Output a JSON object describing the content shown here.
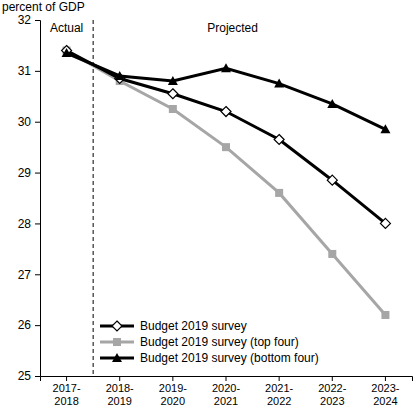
{
  "chart_data": {
    "type": "line",
    "y_label": "percent of GDP",
    "annotations": [
      "Actual",
      "Projected"
    ],
    "categories": [
      "2017-2018",
      "2018-2019",
      "2019-2020",
      "2020-2021",
      "2021-2022",
      "2022-2023",
      "2023-2024"
    ],
    "series": [
      {
        "name": "Budget 2019 survey",
        "color": "#000000",
        "marker": "diamond",
        "values": [
          31.4,
          30.85,
          30.55,
          30.2,
          29.65,
          28.85,
          28.0
        ]
      },
      {
        "name": "Budget 2019 survey (top four)",
        "color": "#a6a6a6",
        "marker": "square",
        "values": [
          31.4,
          30.8,
          30.25,
          29.5,
          28.6,
          27.4,
          26.2
        ]
      },
      {
        "name": "Budget 2019 survey (bottom four)",
        "color": "#000000",
        "marker": "triangle",
        "values": [
          31.35,
          30.9,
          30.8,
          31.05,
          30.75,
          30.35,
          29.85
        ]
      }
    ],
    "ylim": [
      25,
      32
    ],
    "yticks": [
      25,
      26,
      27,
      28,
      29,
      30,
      31,
      32
    ],
    "legend": "lower-left",
    "grid": false
  }
}
